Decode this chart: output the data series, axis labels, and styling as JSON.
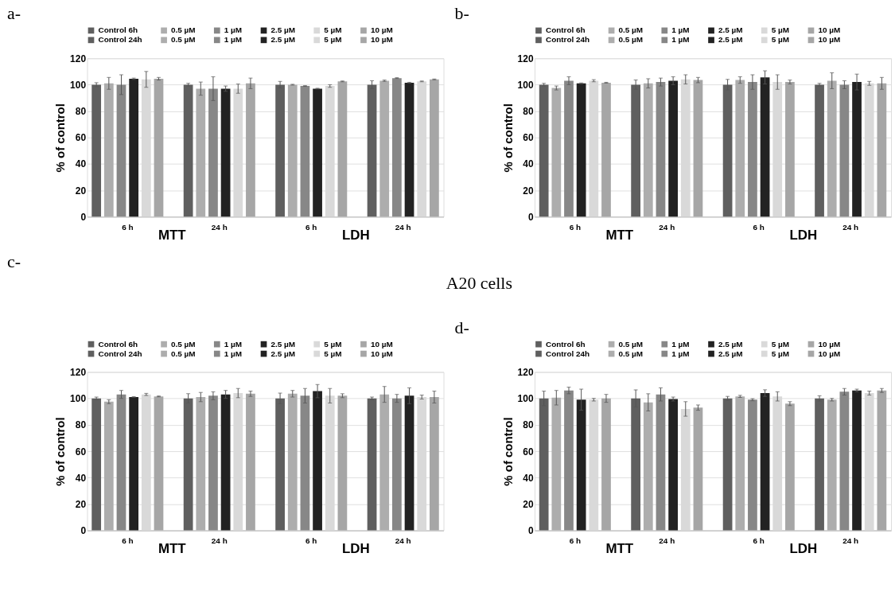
{
  "chart_data": [
    {
      "type": "bar",
      "title": "a-",
      "ylabel": "% of control",
      "categories": [
        "6 h",
        "24 h",
        "6 h",
        "24 h"
      ],
      "annotations": [
        "MTT",
        "LDH"
      ],
      "ylim": [
        0,
        120
      ],
      "yticks": [
        0,
        20,
        40,
        60,
        80,
        100,
        120
      ],
      "grid": "y",
      "legend": "top",
      "series": [
        {
          "name": "Control 6h",
          "color": "#5f5f5f",
          "values": [
            100,
            null,
            100,
            null
          ],
          "errors": [
            1.5,
            null,
            2.5,
            null
          ]
        },
        {
          "name": "0.5 µM",
          "color": "#adadad",
          "values": [
            101,
            null,
            100,
            null
          ],
          "errors": [
            4.5,
            null,
            0.3,
            null
          ]
        },
        {
          "name": "1 µM",
          "color": "#878787",
          "values": [
            100,
            null,
            99,
            null
          ],
          "errors": [
            7.5,
            null,
            0.3,
            null
          ]
        },
        {
          "name": "2.5 µM",
          "color": "#222222",
          "values": [
            104.5,
            null,
            97,
            null
          ],
          "errors": [
            0.5,
            null,
            0.3,
            null
          ]
        },
        {
          "name": "5 µM",
          "color": "#d9d9d9",
          "values": [
            104,
            null,
            99,
            null
          ],
          "errors": [
            6,
            null,
            1,
            null
          ]
        },
        {
          "name": "10 µM",
          "color": "#a6a6a6",
          "values": [
            104.5,
            null,
            102.5,
            null
          ],
          "errors": [
            1,
            null,
            0.3,
            null
          ]
        },
        {
          "name": "Control 24h",
          "color": "#5f5f5f",
          "values": [
            null,
            100,
            null,
            100
          ],
          "errors": [
            null,
            1,
            null,
            3
          ]
        },
        {
          "name": "0.5 µM",
          "color": "#adadad",
          "values": [
            null,
            97,
            null,
            103
          ],
          "errors": [
            null,
            5,
            null,
            0.5
          ]
        },
        {
          "name": "1 µM",
          "color": "#878787",
          "values": [
            null,
            97,
            null,
            105
          ],
          "errors": [
            null,
            9,
            null,
            0.3
          ]
        },
        {
          "name": "2.5 µM",
          "color": "#222222",
          "values": [
            null,
            97,
            null,
            101.5
          ],
          "errors": [
            null,
            2,
            null,
            0.3
          ]
        },
        {
          "name": "5 µM",
          "color": "#d9d9d9",
          "values": [
            null,
            97,
            null,
            102.5
          ],
          "errors": [
            null,
            3.5,
            null,
            0.3
          ]
        },
        {
          "name": "10 µM",
          "color": "#a6a6a6",
          "values": [
            null,
            101,
            null,
            104
          ],
          "errors": [
            null,
            4,
            null,
            0.3
          ]
        }
      ]
    },
    {
      "type": "bar",
      "title": "b-",
      "ylabel": "% of control",
      "categories": [
        "6 h",
        "24 h",
        "6 h",
        "24 h"
      ],
      "annotations": [
        "MTT",
        "LDH"
      ],
      "ylim": [
        0,
        120
      ],
      "yticks": [
        0,
        20,
        40,
        60,
        80,
        100,
        120
      ],
      "grid": "y",
      "legend": "top",
      "series": [
        {
          "name": "Control 6h",
          "color": "#5f5f5f",
          "values": [
            100,
            null,
            100,
            null
          ],
          "errors": [
            1,
            null,
            4,
            null
          ]
        },
        {
          "name": "0.5 µM",
          "color": "#adadad",
          "values": [
            97.5,
            null,
            103.5,
            null
          ],
          "errors": [
            1.5,
            null,
            2.5,
            null
          ]
        },
        {
          "name": "1 µM",
          "color": "#878787",
          "values": [
            103,
            null,
            102,
            null
          ],
          "errors": [
            3,
            null,
            5.5,
            null
          ]
        },
        {
          "name": "2.5 µM",
          "color": "#222222",
          "values": [
            101,
            null,
            105.5,
            null
          ],
          "errors": [
            0.3,
            null,
            5,
            null
          ]
        },
        {
          "name": "5 µM",
          "color": "#d9d9d9",
          "values": [
            103,
            null,
            102,
            null
          ],
          "errors": [
            0.8,
            null,
            5.5,
            null
          ]
        },
        {
          "name": "10 µM",
          "color": "#a6a6a6",
          "values": [
            101.5,
            null,
            102,
            null
          ],
          "errors": [
            0.3,
            null,
            1.5,
            null
          ]
        },
        {
          "name": "Control 24h",
          "color": "#5f5f5f",
          "values": [
            null,
            100,
            null,
            100
          ],
          "errors": [
            null,
            3.5,
            null,
            1
          ]
        },
        {
          "name": "0.5 µM",
          "color": "#adadad",
          "values": [
            null,
            101,
            null,
            103
          ],
          "errors": [
            null,
            3.5,
            null,
            6
          ]
        },
        {
          "name": "1 µM",
          "color": "#878787",
          "values": [
            null,
            102,
            null,
            100
          ],
          "errors": [
            null,
            3,
            null,
            3
          ]
        },
        {
          "name": "2.5 µM",
          "color": "#222222",
          "values": [
            null,
            103,
            null,
            102
          ],
          "errors": [
            null,
            3,
            null,
            6
          ]
        },
        {
          "name": "5 µM",
          "color": "#d9d9d9",
          "values": [
            null,
            104,
            null,
            101
          ],
          "errors": [
            null,
            3.5,
            null,
            1.5
          ]
        },
        {
          "name": "10 µM",
          "color": "#a6a6a6",
          "values": [
            null,
            103.5,
            null,
            101
          ],
          "errors": [
            null,
            2,
            null,
            4.5
          ]
        }
      ]
    },
    {
      "type": "bar",
      "title": "c-",
      "ylabel": "% of control",
      "categories": [
        "6 h",
        "24 h",
        "6 h",
        "24 h"
      ],
      "annotations": [
        "MTT",
        "LDH",
        "A20 cells"
      ],
      "ylim": [
        0,
        120
      ],
      "yticks": [
        0,
        20,
        40,
        60,
        80,
        100,
        120
      ],
      "grid": "y",
      "legend": "top",
      "series": [
        {
          "name": "Control 6h",
          "color": "#5f5f5f",
          "values": [
            100,
            null,
            100,
            null
          ],
          "errors": [
            1,
            null,
            4,
            null
          ]
        },
        {
          "name": "0.5 µM",
          "color": "#adadad",
          "values": [
            97.5,
            null,
            103.5,
            null
          ],
          "errors": [
            1.5,
            null,
            2.5,
            null
          ]
        },
        {
          "name": "1 µM",
          "color": "#878787",
          "values": [
            103,
            null,
            102,
            null
          ],
          "errors": [
            3,
            null,
            5.5,
            null
          ]
        },
        {
          "name": "2.5 µM",
          "color": "#222222",
          "values": [
            101,
            null,
            105.5,
            null
          ],
          "errors": [
            0.3,
            null,
            5,
            null
          ]
        },
        {
          "name": "5 µM",
          "color": "#d9d9d9",
          "values": [
            103,
            null,
            102,
            null
          ],
          "errors": [
            0.8,
            null,
            5.5,
            null
          ]
        },
        {
          "name": "10 µM",
          "color": "#a6a6a6",
          "values": [
            101.5,
            null,
            102,
            null
          ],
          "errors": [
            0.3,
            null,
            1.5,
            null
          ]
        },
        {
          "name": "Control 24h",
          "color": "#5f5f5f",
          "values": [
            null,
            100,
            null,
            100
          ],
          "errors": [
            null,
            3.5,
            null,
            1
          ]
        },
        {
          "name": "0.5 µM",
          "color": "#adadad",
          "values": [
            null,
            101,
            null,
            103
          ],
          "errors": [
            null,
            3.5,
            null,
            6
          ]
        },
        {
          "name": "1 µM",
          "color": "#878787",
          "values": [
            null,
            102,
            null,
            100
          ],
          "errors": [
            null,
            3,
            null,
            3
          ]
        },
        {
          "name": "2.5 µM",
          "color": "#222222",
          "values": [
            null,
            103,
            null,
            102
          ],
          "errors": [
            null,
            3,
            null,
            6
          ]
        },
        {
          "name": "5 µM",
          "color": "#d9d9d9",
          "values": [
            null,
            104,
            null,
            101
          ],
          "errors": [
            null,
            3.5,
            null,
            1.5
          ]
        },
        {
          "name": "10 µM",
          "color": "#a6a6a6",
          "values": [
            null,
            103.5,
            null,
            101
          ],
          "errors": [
            null,
            2,
            null,
            4.5
          ]
        }
      ]
    },
    {
      "type": "bar",
      "title": "d-",
      "ylabel": "% of control",
      "categories": [
        "6 h",
        "24 h",
        "6 h",
        "24 h"
      ],
      "annotations": [
        "MTT",
        "LDH"
      ],
      "ylim": [
        0,
        120
      ],
      "yticks": [
        0,
        20,
        40,
        60,
        80,
        100,
        120
      ],
      "grid": "y",
      "legend": "top",
      "series": [
        {
          "name": "Control 6h",
          "color": "#5f5f5f",
          "values": [
            100,
            null,
            100,
            null
          ],
          "errors": [
            5.5,
            null,
            1.5,
            null
          ]
        },
        {
          "name": "0.5 µM",
          "color": "#adadad",
          "values": [
            100.5,
            null,
            101.5,
            null
          ],
          "errors": [
            5.5,
            null,
            0.8,
            null
          ]
        },
        {
          "name": "1 µM",
          "color": "#878787",
          "values": [
            106,
            null,
            99,
            null
          ],
          "errors": [
            2.5,
            null,
            0.8,
            null
          ]
        },
        {
          "name": "2.5 µM",
          "color": "#222222",
          "values": [
            99,
            null,
            104,
            null
          ],
          "errors": [
            8,
            null,
            2.5,
            null
          ]
        },
        {
          "name": "5 µM",
          "color": "#d9d9d9",
          "values": [
            99,
            null,
            101.5,
            null
          ],
          "errors": [
            1,
            null,
            3.5,
            null
          ]
        },
        {
          "name": "10 µM",
          "color": "#a6a6a6",
          "values": [
            100,
            null,
            96,
            null
          ],
          "errors": [
            3,
            null,
            1.5,
            null
          ]
        },
        {
          "name": "Control 24h",
          "color": "#5f5f5f",
          "values": [
            null,
            100,
            null,
            100
          ],
          "errors": [
            null,
            6.5,
            null,
            2
          ]
        },
        {
          "name": "0.5 µM",
          "color": "#adadad",
          "values": [
            null,
            97,
            null,
            99
          ],
          "errors": [
            null,
            6.5,
            null,
            1
          ]
        },
        {
          "name": "1 µM",
          "color": "#878787",
          "values": [
            null,
            103,
            null,
            105
          ],
          "errors": [
            null,
            5,
            null,
            2.5
          ]
        },
        {
          "name": "2.5 µM",
          "color": "#222222",
          "values": [
            null,
            99.5,
            null,
            106
          ],
          "errors": [
            null,
            1.5,
            null,
            1
          ]
        },
        {
          "name": "5 µM",
          "color": "#d9d9d9",
          "values": [
            null,
            92,
            null,
            104
          ],
          "errors": [
            null,
            5.5,
            null,
            1.5
          ]
        },
        {
          "name": "10 µM",
          "color": "#a6a6a6",
          "values": [
            null,
            93,
            null,
            106
          ],
          "errors": [
            null,
            2,
            null,
            1.5
          ]
        }
      ]
    }
  ]
}
